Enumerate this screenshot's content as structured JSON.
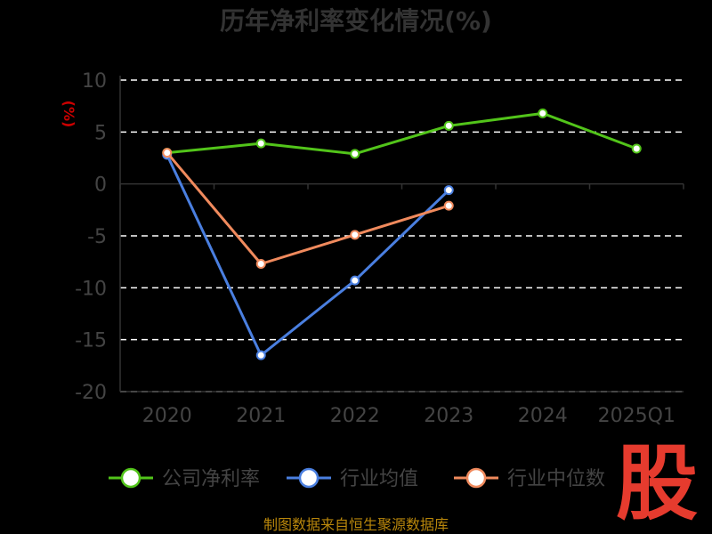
{
  "chart_data": {
    "type": "line",
    "title": "历年净利率变化情况(%)",
    "ylabel": "(%)",
    "categories": [
      "2020",
      "2021",
      "2022",
      "2023",
      "2024",
      "2025Q1"
    ],
    "ylim": [
      -20,
      10
    ],
    "yticks": [
      10,
      5,
      0,
      -5,
      -10,
      -15,
      -20
    ],
    "grid": true,
    "legend_position": "bottom",
    "series": [
      {
        "name": "公司净利率",
        "color": "#52c41a",
        "values": [
          3.0,
          3.9,
          2.9,
          5.6,
          6.8,
          3.4
        ]
      },
      {
        "name": "行业均值",
        "color": "#4a7fe0",
        "values": [
          2.8,
          -16.5,
          -9.3,
          -0.6,
          null,
          null
        ]
      },
      {
        "name": "行业中位数",
        "color": "#f08a5d",
        "values": [
          3.0,
          -7.7,
          -4.9,
          -2.1,
          null,
          null
        ]
      }
    ]
  },
  "source": "制图数据来自恒生聚源数据库",
  "logo_text": "股"
}
